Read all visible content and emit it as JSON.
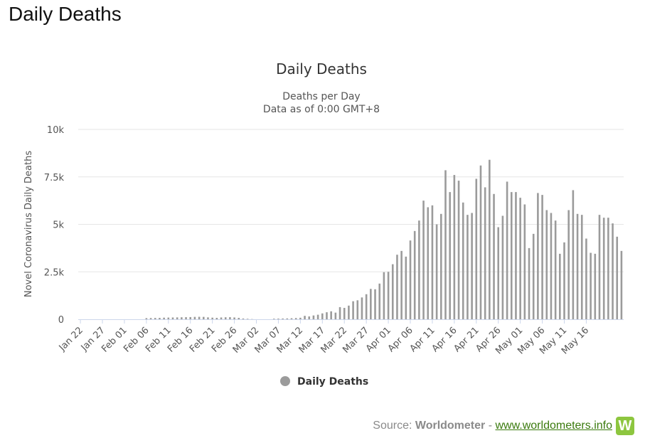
{
  "page": {
    "heading": "Daily Deaths"
  },
  "source": {
    "prefix": "Source:",
    "brand": "Worldometer",
    "separator": "-",
    "link": "www.worldometers.info",
    "logo_letter": "W"
  },
  "colors": {
    "bar": "#9b9b9b",
    "grid": "#e6e6e6",
    "axis_line": "#ccd6eb",
    "logo": "#8dc63f",
    "link": "#3a7a0d"
  },
  "chart_data": {
    "type": "bar",
    "title": "Daily Deaths",
    "subtitle_lines": [
      "Deaths per Day",
      "Data as of 0:00 GMT+8"
    ],
    "ylabel": "Novel Coronavirus Daily Deaths",
    "ylim": [
      0,
      10000
    ],
    "yticks": [
      0,
      2500,
      5000,
      7500,
      10000
    ],
    "ytick_labels": [
      "0",
      "2.5k",
      "5k",
      "7.5k",
      "10k"
    ],
    "xtick_labels": [
      "Jan 22",
      "Jan 27",
      "Feb 01",
      "Feb 06",
      "Feb 11",
      "Feb 16",
      "Feb 21",
      "Feb 26",
      "Mar 02",
      "Mar 07",
      "Mar 12",
      "Mar 17",
      "Mar 22",
      "Mar 27",
      "Apr 01",
      "Apr 06",
      "Apr 11",
      "Apr 16",
      "Apr 21",
      "Apr 26",
      "May 01",
      "May 06",
      "May 11",
      "May 16"
    ],
    "xtick_every": 5,
    "grid": true,
    "legend": {
      "position": "bottom-center",
      "entries": [
        "Daily Deaths"
      ]
    },
    "series": [
      {
        "name": "Daily Deaths",
        "start_date": "Jan 22",
        "values": [
          0,
          0,
          0,
          0,
          0,
          0,
          0,
          0,
          0,
          0,
          0,
          0,
          0,
          0,
          0,
          60,
          65,
          70,
          75,
          85,
          90,
          95,
          100,
          105,
          110,
          115,
          125,
          130,
          125,
          100,
          85,
          75,
          95,
          105,
          110,
          95,
          75,
          40,
          25,
          10,
          0,
          0,
          0,
          0,
          30,
          35,
          40,
          45,
          55,
          65,
          80,
          180,
          150,
          200,
          240,
          310,
          370,
          420,
          350,
          640,
          600,
          720,
          950,
          1000,
          1150,
          1320,
          1600,
          1580,
          1880,
          2480,
          2500,
          2900,
          3400,
          3600,
          3300,
          4150,
          4650,
          5200,
          6250,
          5900,
          6000,
          5000,
          5550,
          7850,
          6700,
          7600,
          7300,
          6150,
          5500,
          5600,
          7400,
          8100,
          6950,
          8400,
          6600,
          4850,
          5450,
          7250,
          6700,
          6700,
          6400,
          6050,
          3750,
          4500,
          6650,
          6550,
          5750,
          5600,
          5200,
          3450,
          4050,
          5750,
          6800,
          5550,
          5500,
          4250,
          3500,
          3450,
          5500,
          5350,
          5350,
          5050,
          4350,
          3600
        ]
      }
    ]
  }
}
